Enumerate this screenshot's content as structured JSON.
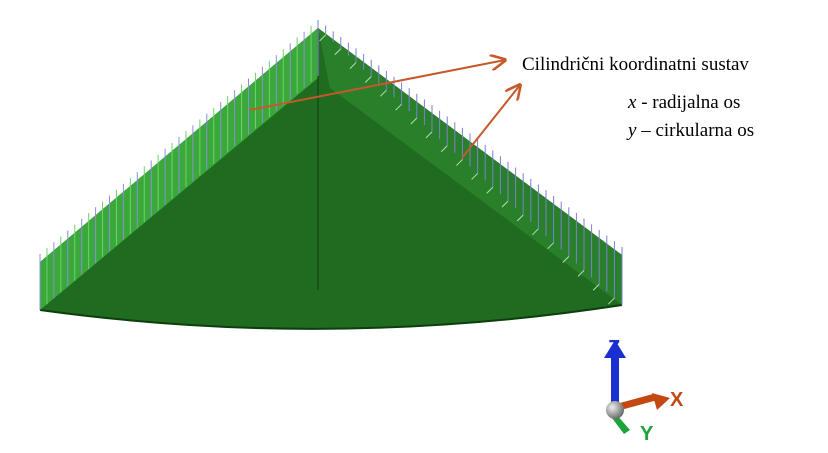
{
  "annotation": {
    "title": "Cilindrični koordinatni sustav",
    "lines": [
      {
        "symbol": "x",
        "text": " - radijalna os"
      },
      {
        "symbol": "y",
        "text": " – cirkularna os"
      }
    ]
  },
  "triad": {
    "z": "Z",
    "x": "X",
    "y": "Y"
  }
}
